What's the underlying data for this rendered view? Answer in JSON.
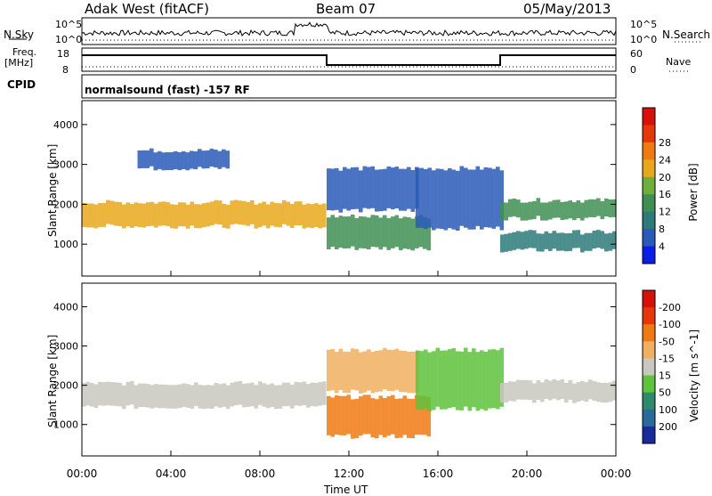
{
  "header": {
    "site": "Adak West (fitACF)",
    "beam": "Beam 07",
    "date": "05/May/2013"
  },
  "top_panels": {
    "nsky_label": "N.Sky",
    "nsky_ticks": [
      "10^5",
      "10^0"
    ],
    "nsearch_label": "N.Search",
    "nsearch_ticks": [
      "10^5",
      "10^0"
    ],
    "freq_label": "Freq.",
    "freq_unit": "[MHz]",
    "freq_ticks": [
      "18",
      "8"
    ],
    "nave_label": "Nave",
    "nave_ticks": [
      "60",
      "0"
    ],
    "cpid_label": "CPID",
    "cpid_text": "normalsound (fast) -157 RF"
  },
  "chart_data": [
    {
      "type": "heatmap",
      "name": "power",
      "ylabel": "Slant Range [km]",
      "xlabel": "",
      "yticks": [
        1000,
        2000,
        3000,
        4000
      ],
      "ylim": [
        200,
        4600
      ],
      "xlim": [
        0,
        24
      ],
      "colorbar": {
        "label": "Power [dB]",
        "ticks": [
          4,
          8,
          12,
          16,
          20,
          24,
          28
        ],
        "colors": [
          "#0a1ee6",
          "#2a5ab8",
          "#2e7a7a",
          "#3f8f55",
          "#6fae3c",
          "#e8a81c",
          "#f07a12",
          "#e8360c",
          "#d8100a"
        ]
      },
      "bands": [
        {
          "t0": 0.0,
          "t1": 10.8,
          "r0": 1450,
          "r1": 2050,
          "level": 18
        },
        {
          "t0": 2.5,
          "t1": 6.5,
          "r0": 2900,
          "r1": 3350,
          "level": 6
        },
        {
          "t0": 11.0,
          "t1": 15.5,
          "r0": 900,
          "r1": 1700,
          "level": 14
        },
        {
          "t0": 11.0,
          "t1": 15.0,
          "r0": 1850,
          "r1": 2900,
          "level": 8
        },
        {
          "t0": 15.0,
          "t1": 18.8,
          "r0": 1400,
          "r1": 2900,
          "level": 8
        },
        {
          "t0": 18.8,
          "t1": 24.0,
          "r0": 1650,
          "r1": 2100,
          "level": 14
        },
        {
          "t0": 18.8,
          "t1": 24.0,
          "r0": 850,
          "r1": 1300,
          "level": 10
        }
      ]
    },
    {
      "type": "heatmap",
      "name": "velocity",
      "ylabel": "Slant Range [km]",
      "xlabel": "Time UT",
      "xticks": [
        "00:00",
        "04:00",
        "08:00",
        "12:00",
        "16:00",
        "20:00",
        "00:00"
      ],
      "yticks": [
        1000,
        2000,
        3000,
        4000
      ],
      "ylim": [
        200,
        4600
      ],
      "xlim": [
        0,
        24
      ],
      "colorbar": {
        "label": "Velocity [m s^-1]",
        "ticks": [
          "200",
          "100",
          "50",
          "15",
          "-15",
          "-50",
          "-100",
          "-200"
        ],
        "colors": [
          "#1a2a9a",
          "#2a6a9a",
          "#2e8a6a",
          "#5ec23c",
          "#c8c8c0",
          "#f0b060",
          "#f07a12",
          "#e8360c",
          "#d8100a"
        ]
      },
      "bands": [
        {
          "t0": 0.0,
          "t1": 10.8,
          "r0": 1450,
          "r1": 2050,
          "level": 0
        },
        {
          "t0": 11.0,
          "t1": 15.5,
          "r0": 700,
          "r1": 1700,
          "level": -60
        },
        {
          "t0": 11.0,
          "t1": 15.0,
          "r0": 1850,
          "r1": 2900,
          "level": -20
        },
        {
          "t0": 15.0,
          "t1": 18.8,
          "r0": 1400,
          "r1": 2900,
          "level": 40
        },
        {
          "t0": 18.8,
          "t1": 24.0,
          "r0": 1600,
          "r1": 2100,
          "level": 0
        }
      ]
    }
  ]
}
